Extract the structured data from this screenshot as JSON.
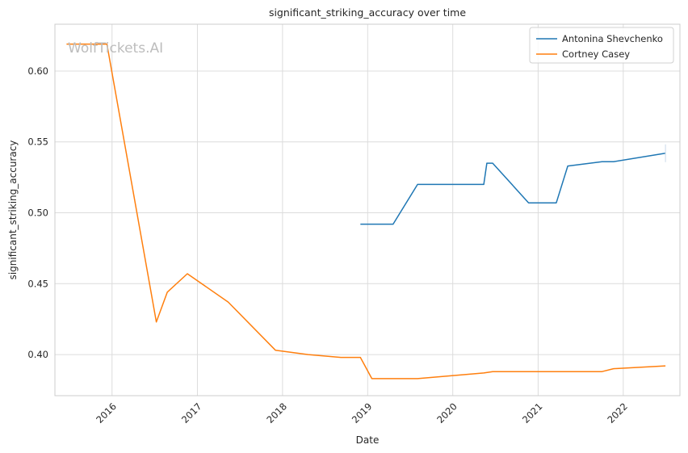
{
  "chart_data": {
    "type": "line",
    "title": "significant_striking_accuracy over time",
    "xlabel": "Date",
    "ylabel": "significant_striking_accuracy",
    "watermark": "WolfTickets.AI",
    "x_tick_labels": [
      "2016",
      "2017",
      "2018",
      "2019",
      "2020",
      "2021",
      "2022"
    ],
    "y_tick_labels": [
      "0.40",
      "0.45",
      "0.50",
      "0.55",
      "0.60"
    ],
    "y_ticks": [
      0.4,
      0.45,
      0.5,
      0.55,
      0.6
    ],
    "xlim": [
      "2015-05-01",
      "2022-09-01"
    ],
    "ylim": [
      0.371,
      0.633
    ],
    "grid": true,
    "legend_position": "top-right",
    "series": [
      {
        "name": "Antonina Shevchenko",
        "color": "#1f77b4",
        "points": [
          [
            "2018-12-01",
            0.492
          ],
          [
            "2019-04-20",
            0.492
          ],
          [
            "2019-08-03",
            0.52
          ],
          [
            "2020-05-13",
            0.52
          ],
          [
            "2020-05-26",
            0.535
          ],
          [
            "2020-06-20",
            0.535
          ],
          [
            "2020-11-21",
            0.507
          ],
          [
            "2021-03-20",
            0.507
          ],
          [
            "2021-05-08",
            0.533
          ],
          [
            "2021-10-02",
            0.536
          ],
          [
            "2021-11-20",
            0.536
          ],
          [
            "2022-07-01",
            0.542
          ]
        ]
      },
      {
        "name": "Cortney Casey",
        "color": "#ff7f0e",
        "points": [
          [
            "2015-06-20",
            0.619
          ],
          [
            "2015-12-10",
            0.619
          ],
          [
            "2016-07-09",
            0.423
          ],
          [
            "2016-08-25",
            0.444
          ],
          [
            "2016-11-19",
            0.457
          ],
          [
            "2017-05-13",
            0.437
          ],
          [
            "2017-12-02",
            0.403
          ],
          [
            "2018-04-21",
            0.4
          ],
          [
            "2018-09-08",
            0.398
          ],
          [
            "2018-12-01",
            0.398
          ],
          [
            "2019-01-19",
            0.383
          ],
          [
            "2019-08-03",
            0.383
          ],
          [
            "2020-05-13",
            0.387
          ],
          [
            "2020-06-20",
            0.388
          ],
          [
            "2020-12-05",
            0.388
          ],
          [
            "2021-03-20",
            0.388
          ],
          [
            "2021-10-02",
            0.388
          ],
          [
            "2021-11-20",
            0.39
          ],
          [
            "2022-07-01",
            0.392
          ]
        ]
      }
    ]
  }
}
